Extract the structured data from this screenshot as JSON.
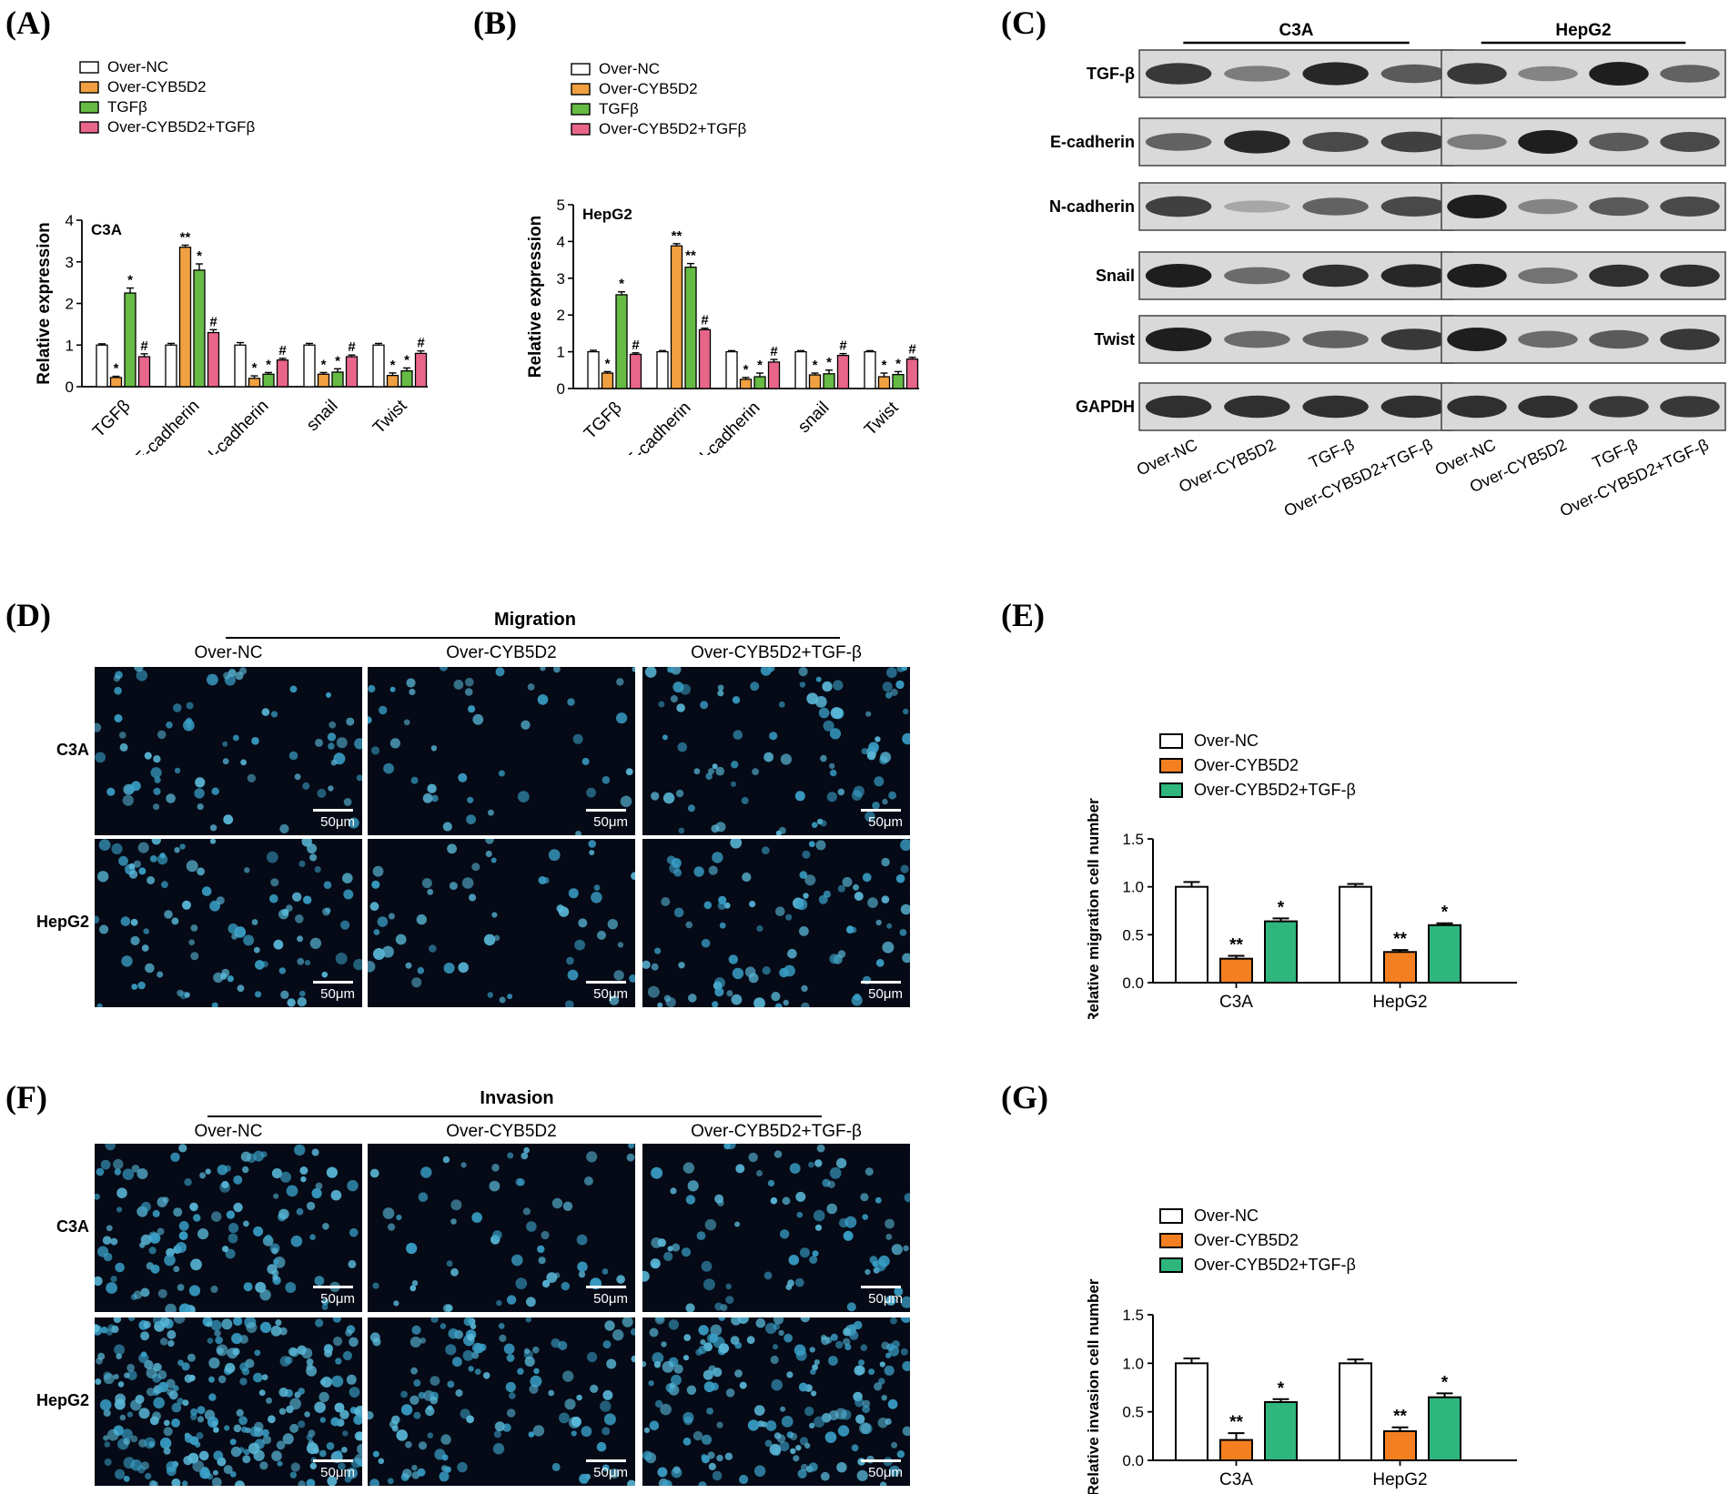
{
  "panels": {
    "A": "(A)",
    "B": "(B)",
    "C": "(C)",
    "D": "(D)",
    "E": "(E)",
    "F": "(F)",
    "G": "(G)"
  },
  "colors": {
    "over_nc": "#ffffff",
    "over_cyb5d2": "#f0a040",
    "tgfb": "#66bb44",
    "over_cyb5d2_tgfb": "#e8668a",
    "orange_E": "#f47f20",
    "green_E": "#2eb67d",
    "micro_bg": "#050a16",
    "nuclei": "#3aa0c8"
  },
  "legends": {
    "ab": [
      "Over-NC",
      "Over-CYB5D2",
      "TGFβ",
      "Over-CYB5D2+TGFβ"
    ],
    "eg": [
      "Over-NC",
      "Over-CYB5D2",
      "Over-CYB5D2+TGF-β"
    ]
  },
  "chart_data": [
    {
      "panel": "A",
      "type": "bar",
      "title": "C3A",
      "ylabel": "Relative expression",
      "xlabel": "",
      "ylim": [
        0,
        4
      ],
      "yticks": [
        "0",
        "1",
        "2",
        "3",
        "4"
      ],
      "categories": [
        "TGFβ",
        "E-cadherin",
        "N-cadherin",
        "snail",
        "Twist"
      ],
      "series": [
        {
          "name": "Over-NC",
          "values": [
            1.0,
            1.0,
            1.0,
            1.0,
            1.0
          ],
          "errors": [
            0.03,
            0.04,
            0.06,
            0.04,
            0.04
          ],
          "marks": [
            "",
            "",
            "",
            "",
            ""
          ]
        },
        {
          "name": "Over-CYB5D2",
          "values": [
            0.22,
            3.35,
            0.2,
            0.3,
            0.27
          ],
          "errors": [
            0.03,
            0.05,
            0.06,
            0.04,
            0.06
          ],
          "marks": [
            "*",
            "**",
            "*",
            "*",
            "*"
          ]
        },
        {
          "name": "TGFβ",
          "values": [
            2.25,
            2.8,
            0.3,
            0.35,
            0.38
          ],
          "errors": [
            0.12,
            0.15,
            0.04,
            0.08,
            0.07
          ],
          "marks": [
            "*",
            "*",
            "*",
            "*",
            "*"
          ]
        },
        {
          "name": "Over-CYB5D2+TGFβ",
          "values": [
            0.72,
            1.3,
            0.64,
            0.72,
            0.8
          ],
          "errors": [
            0.07,
            0.07,
            0.04,
            0.04,
            0.06
          ],
          "marks": [
            "#",
            "#",
            "#",
            "#",
            "#"
          ]
        }
      ]
    },
    {
      "panel": "B",
      "type": "bar",
      "title": "HepG2",
      "ylabel": "Relative expression",
      "xlabel": "",
      "ylim": [
        0,
        5
      ],
      "yticks": [
        "0",
        "1",
        "2",
        "3",
        "4",
        "5"
      ],
      "categories": [
        "TGFβ",
        "E-cadherin",
        "N-cadherin",
        "snail",
        "Twist"
      ],
      "series": [
        {
          "name": "Over-NC",
          "values": [
            1.0,
            1.0,
            1.0,
            1.0,
            1.0
          ],
          "errors": [
            0.04,
            0.03,
            0.03,
            0.03,
            0.03
          ],
          "marks": [
            "",
            "",
            "",
            "",
            ""
          ]
        },
        {
          "name": "Over-CYB5D2",
          "values": [
            0.42,
            3.88,
            0.25,
            0.37,
            0.32
          ],
          "errors": [
            0.04,
            0.06,
            0.05,
            0.05,
            0.1
          ],
          "marks": [
            "*",
            "**",
            "*",
            "*",
            "*"
          ]
        },
        {
          "name": "TGFβ",
          "values": [
            2.55,
            3.3,
            0.32,
            0.4,
            0.38
          ],
          "errors": [
            0.08,
            0.1,
            0.1,
            0.1,
            0.08
          ],
          "marks": [
            "*",
            "**",
            "*",
            "*",
            "*"
          ]
        },
        {
          "name": "Over-CYB5D2+TGFβ",
          "values": [
            0.93,
            1.6,
            0.72,
            0.9,
            0.8
          ],
          "errors": [
            0.04,
            0.04,
            0.07,
            0.05,
            0.05
          ],
          "marks": [
            "#",
            "#",
            "#",
            "#",
            "#"
          ]
        }
      ]
    },
    {
      "panel": "E",
      "type": "bar",
      "title": "",
      "ylabel": "Relative migration cell number",
      "xlabel": "",
      "ylim": [
        0,
        1.5
      ],
      "yticks": [
        "0.0",
        "0.5",
        "1.0",
        "1.5"
      ],
      "categories": [
        "C3A",
        "HepG2"
      ],
      "series": [
        {
          "name": "Over-NC",
          "values": [
            1.0,
            1.0
          ],
          "errors": [
            0.05,
            0.03
          ],
          "marks": [
            "",
            ""
          ]
        },
        {
          "name": "Over-CYB5D2",
          "values": [
            0.25,
            0.32
          ],
          "errors": [
            0.03,
            0.02
          ],
          "marks": [
            "**",
            "**"
          ]
        },
        {
          "name": "Over-CYB5D2+TGF-β",
          "values": [
            0.64,
            0.6
          ],
          "errors": [
            0.03,
            0.02
          ],
          "marks": [
            "*",
            "*"
          ]
        }
      ]
    },
    {
      "panel": "G",
      "type": "bar",
      "title": "",
      "ylabel": "Relative invasion cell number",
      "xlabel": "",
      "ylim": [
        0,
        1.5
      ],
      "yticks": [
        "0.0",
        "0.5",
        "1.0",
        "1.5"
      ],
      "categories": [
        "C3A",
        "HepG2"
      ],
      "series": [
        {
          "name": "Over-NC",
          "values": [
            1.0,
            1.0
          ],
          "errors": [
            0.05,
            0.04
          ],
          "marks": [
            "",
            ""
          ]
        },
        {
          "name": "Over-CYB5D2",
          "values": [
            0.21,
            0.3
          ],
          "errors": [
            0.07,
            0.04
          ],
          "marks": [
            "**",
            "**"
          ]
        },
        {
          "name": "Over-CYB5D2+TGF-β",
          "values": [
            0.6,
            0.65
          ],
          "errors": [
            0.03,
            0.04
          ],
          "marks": [
            "*",
            "*"
          ]
        }
      ]
    }
  ],
  "western_blot": {
    "groups": [
      "C3A",
      "HepG2"
    ],
    "proteins": [
      "TGF-β",
      "E-cadherin",
      "N-cadherin",
      "Snail",
      "Twist",
      "GAPDH"
    ],
    "lanes": [
      "Over-NC",
      "Over-CYB5D2",
      "TGF-β",
      "Over-CYB5D2+TGF-β"
    ],
    "band_intensity": {
      "C3A": [
        [
          0.85,
          0.45,
          0.95,
          0.65
        ],
        [
          0.6,
          0.95,
          0.75,
          0.8
        ],
        [
          0.8,
          0.2,
          0.6,
          0.75
        ],
        [
          1.0,
          0.55,
          0.9,
          0.95
        ],
        [
          1.0,
          0.55,
          0.6,
          0.85
        ],
        [
          0.9,
          0.9,
          0.9,
          0.9
        ]
      ],
      "HepG2": [
        [
          0.85,
          0.4,
          1.0,
          0.6
        ],
        [
          0.45,
          1.0,
          0.65,
          0.75
        ],
        [
          1.0,
          0.4,
          0.65,
          0.75
        ],
        [
          1.0,
          0.5,
          0.9,
          0.9
        ],
        [
          1.0,
          0.55,
          0.65,
          0.85
        ],
        [
          0.9,
          0.9,
          0.85,
          0.85
        ]
      ]
    }
  },
  "migration": {
    "title": "Migration",
    "columns": [
      "Over-NC",
      "Over-CYB5D2",
      "Over-CYB5D2+TGF-β"
    ],
    "rows": [
      "C3A",
      "HepG2"
    ],
    "scale": "50μm"
  },
  "invasion": {
    "title": "Invasion",
    "columns": [
      "Over-NC",
      "Over-CYB5D2",
      "Over-CYB5D2+TGF-β"
    ],
    "rows": [
      "C3A",
      "HepG2"
    ],
    "scale": "50μm"
  }
}
